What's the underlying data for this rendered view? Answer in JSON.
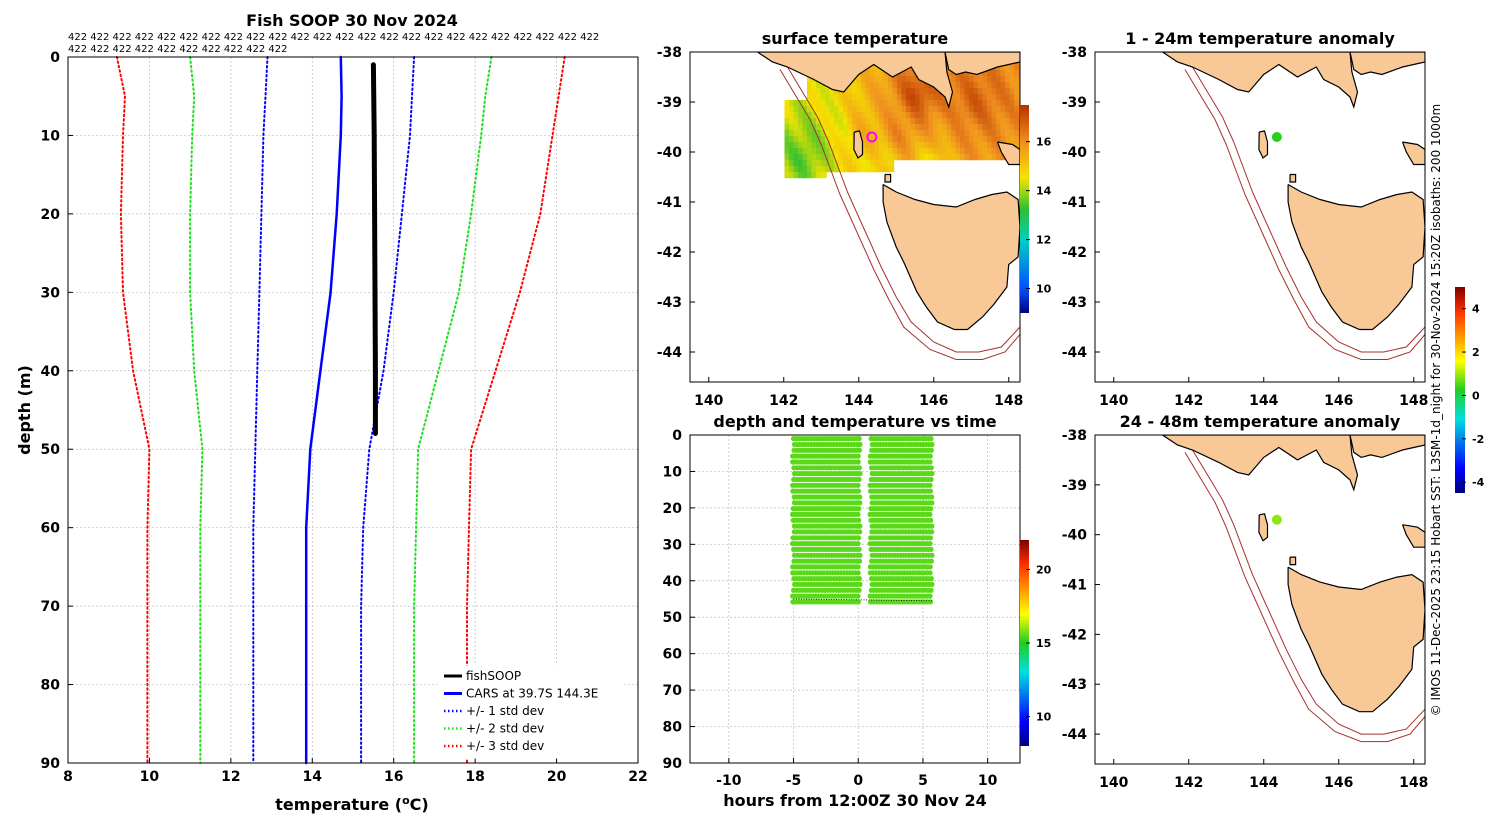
{
  "credit": "© IMOS 11-Dec-2025 23:15 Hobart SST: L3SM-1d_night for 30-Nov-2024 15:20Z isobaths: 200  1000m",
  "chart_data": [
    {
      "type": "line",
      "title": "Fish SOOP 30 Nov 2024",
      "count_labels": {
        "row1": "422 422 422 422 422 422 422 422 422 422 422 422 422 422 422 422 422 422 422 422 422 422 422 422",
        "row2": "422 422 422 422 422 422 422 422 422 422"
      },
      "xlabel": "temperature (",
      "xlabel_unit": "o",
      "xlabel_end": "C)",
      "ylabel": "depth (m)",
      "xlim": [
        8,
        22
      ],
      "ylim": [
        90,
        0
      ],
      "xticks": [
        "8",
        "10",
        "12",
        "14",
        "16",
        "18",
        "20",
        "22"
      ],
      "yticks": [
        "0",
        "10",
        "20",
        "30",
        "40",
        "50",
        "60",
        "70",
        "80",
        "90"
      ],
      "series": [
        {
          "name": "fishSOOP",
          "color": "#000000",
          "style": "solid",
          "width": 5,
          "points": [
            [
              15.5,
              1
            ],
            [
              15.52,
              10
            ],
            [
              15.53,
              20
            ],
            [
              15.54,
              30
            ],
            [
              15.55,
              40
            ],
            [
              15.55,
              48
            ]
          ]
        },
        {
          "name": "CARS at 39.7S 144.3E",
          "color": "#0000ff",
          "style": "solid",
          "width": 2.5,
          "points": [
            [
              14.7,
              0
            ],
            [
              14.72,
              5
            ],
            [
              14.7,
              10
            ],
            [
              14.6,
              20
            ],
            [
              14.45,
              30
            ],
            [
              14.2,
              40
            ],
            [
              13.95,
              50
            ],
            [
              13.85,
              60
            ],
            [
              13.85,
              70
            ],
            [
              13.85,
              80
            ],
            [
              13.85,
              90
            ]
          ]
        },
        {
          "name": "+/- 1 std dev",
          "color": "#0000ff",
          "style": "dotted",
          "width": 2,
          "points": [
            [
              12.9,
              0
            ],
            [
              12.85,
              5
            ],
            [
              12.8,
              10
            ],
            [
              12.75,
              20
            ],
            [
              12.7,
              30
            ],
            [
              12.65,
              40
            ],
            [
              12.6,
              50
            ],
            [
              12.55,
              60
            ],
            [
              12.55,
              70
            ],
            [
              12.55,
              80
            ],
            [
              12.55,
              90
            ]
          ]
        },
        {
          "name": "_",
          "color": "#0000ff",
          "style": "dotted",
          "width": 2,
          "points": [
            [
              16.5,
              0
            ],
            [
              16.45,
              5
            ],
            [
              16.4,
              10
            ],
            [
              16.2,
              20
            ],
            [
              16.0,
              30
            ],
            [
              15.75,
              40
            ],
            [
              15.4,
              50
            ],
            [
              15.25,
              60
            ],
            [
              15.2,
              70
            ],
            [
              15.2,
              80
            ],
            [
              15.2,
              90
            ]
          ]
        },
        {
          "name": "+/- 2 std dev",
          "color": "#22dd22",
          "style": "dotted",
          "width": 2,
          "points": [
            [
              11.0,
              0
            ],
            [
              11.1,
              5
            ],
            [
              11.05,
              10
            ],
            [
              11.0,
              20
            ],
            [
              11.0,
              30
            ],
            [
              11.1,
              40
            ],
            [
              11.3,
              50
            ],
            [
              11.25,
              60
            ],
            [
              11.25,
              70
            ],
            [
              11.25,
              80
            ],
            [
              11.25,
              90
            ]
          ]
        },
        {
          "name": "_",
          "color": "#22dd22",
          "style": "dotted",
          "width": 2,
          "points": [
            [
              18.4,
              0
            ],
            [
              18.25,
              5
            ],
            [
              18.15,
              10
            ],
            [
              17.9,
              20
            ],
            [
              17.6,
              30
            ],
            [
              17.1,
              40
            ],
            [
              16.6,
              50
            ],
            [
              16.55,
              60
            ],
            [
              16.5,
              70
            ],
            [
              16.5,
              80
            ],
            [
              16.5,
              90
            ]
          ]
        },
        {
          "name": "+/- 3 std dev",
          "color": "#ff0000",
          "style": "dotted",
          "width": 2,
          "points": [
            [
              9.2,
              0
            ],
            [
              9.4,
              5
            ],
            [
              9.35,
              10
            ],
            [
              9.3,
              20
            ],
            [
              9.35,
              30
            ],
            [
              9.6,
              40
            ],
            [
              10.0,
              50
            ],
            [
              9.95,
              60
            ],
            [
              9.95,
              70
            ],
            [
              9.95,
              80
            ],
            [
              9.95,
              90
            ]
          ]
        },
        {
          "name": "_",
          "color": "#ff0000",
          "style": "dotted",
          "width": 2,
          "points": [
            [
              20.2,
              0
            ],
            [
              20.05,
              5
            ],
            [
              19.9,
              10
            ],
            [
              19.6,
              20
            ],
            [
              19.1,
              30
            ],
            [
              18.5,
              40
            ],
            [
              17.9,
              50
            ],
            [
              17.85,
              60
            ],
            [
              17.8,
              70
            ],
            [
              17.8,
              80
            ],
            [
              17.8,
              90
            ]
          ]
        }
      ],
      "legend": [
        "fishSOOP",
        "CARS at 39.7S 144.3E",
        "+/- 1 std dev",
        "+/- 2 std dev",
        "+/- 3 std dev"
      ],
      "legend_position": "bottom-right"
    },
    {
      "type": "heatmap",
      "title": "surface temperature",
      "xticks": [
        "140",
        "142",
        "144",
        "146",
        "148"
      ],
      "yticks": [
        "-38",
        "-39",
        "-40",
        "-41",
        "-42",
        "-43",
        "-44"
      ],
      "xlim": [
        139.5,
        148.3
      ],
      "ylim": [
        -44.6,
        -38
      ],
      "colorbar": {
        "ticks": [
          "10",
          "12",
          "14",
          "16"
        ],
        "range": [
          9,
          17.5
        ]
      },
      "marker": {
        "lon": 144.35,
        "lat": -39.7,
        "color": "#ff00ff"
      },
      "sst_blobs": [
        {
          "lon": 145.5,
          "lat": -38.8,
          "value": 17.3
        },
        {
          "lon": 147.0,
          "lat": -39.0,
          "value": 16.8
        },
        {
          "lon": 145.0,
          "lat": -39.6,
          "value": 16.2
        },
        {
          "lon": 146.6,
          "lat": -39.7,
          "value": 16.0
        },
        {
          "lon": 144.2,
          "lat": -39.4,
          "value": 15.5
        },
        {
          "lon": 143.2,
          "lat": -39.3,
          "value": 14.6
        },
        {
          "lon": 142.8,
          "lat": -39.6,
          "value": 13.8
        },
        {
          "lon": 142.5,
          "lat": -40.0,
          "value": 13.4
        },
        {
          "lon": 144.5,
          "lat": -40.2,
          "value": 14.5
        },
        {
          "lon": 146.0,
          "lat": -40.2,
          "value": 14.3
        }
      ]
    },
    {
      "type": "scatter",
      "title": "depth and temperature vs time",
      "xlabel": "hours from 12:00Z 30 Nov 24",
      "xlim": [
        -13,
        12.5
      ],
      "ylim": [
        90,
        0
      ],
      "xticks": [
        "-10",
        "-5",
        "0",
        "5",
        "10"
      ],
      "yticks": [
        "0",
        "10",
        "20",
        "30",
        "40",
        "50",
        "60",
        "70",
        "80",
        "90"
      ],
      "colorbar": {
        "ticks": [
          "10",
          "15",
          "20"
        ],
        "range": [
          8,
          22
        ]
      },
      "blocks": [
        {
          "x0": -5.0,
          "x1": 0.2,
          "y0": 1,
          "y1": 46,
          "value": 15.5
        },
        {
          "x0": 1.0,
          "x1": 5.7,
          "y0": 1,
          "y1": 47,
          "value": 15.5
        }
      ]
    },
    {
      "type": "scatter",
      "title": "1 - 24m temperature anomaly",
      "xticks": [
        "140",
        "142",
        "144",
        "146",
        "148"
      ],
      "yticks": [
        "-38",
        "-39",
        "-40",
        "-41",
        "-42",
        "-43",
        "-44"
      ],
      "xlim": [
        139.5,
        148.3
      ],
      "ylim": [
        -44.6,
        -38
      ],
      "point": {
        "lon": 144.35,
        "lat": -39.7,
        "value": 0.3
      }
    },
    {
      "type": "scatter",
      "title": "24 - 48m temperature anomaly",
      "xticks": [
        "140",
        "142",
        "144",
        "146",
        "148"
      ],
      "yticks": [
        "-38",
        "-39",
        "-40",
        "-41",
        "-42",
        "-43",
        "-44"
      ],
      "xlim": [
        139.5,
        148.3
      ],
      "ylim": [
        -44.6,
        -38
      ],
      "point": {
        "lon": 144.35,
        "lat": -39.7,
        "value": 0.9
      },
      "colorbar": {
        "ticks": [
          "-4",
          "-2",
          "0",
          "2",
          "4"
        ],
        "range": [
          -4.5,
          5
        ]
      }
    }
  ]
}
